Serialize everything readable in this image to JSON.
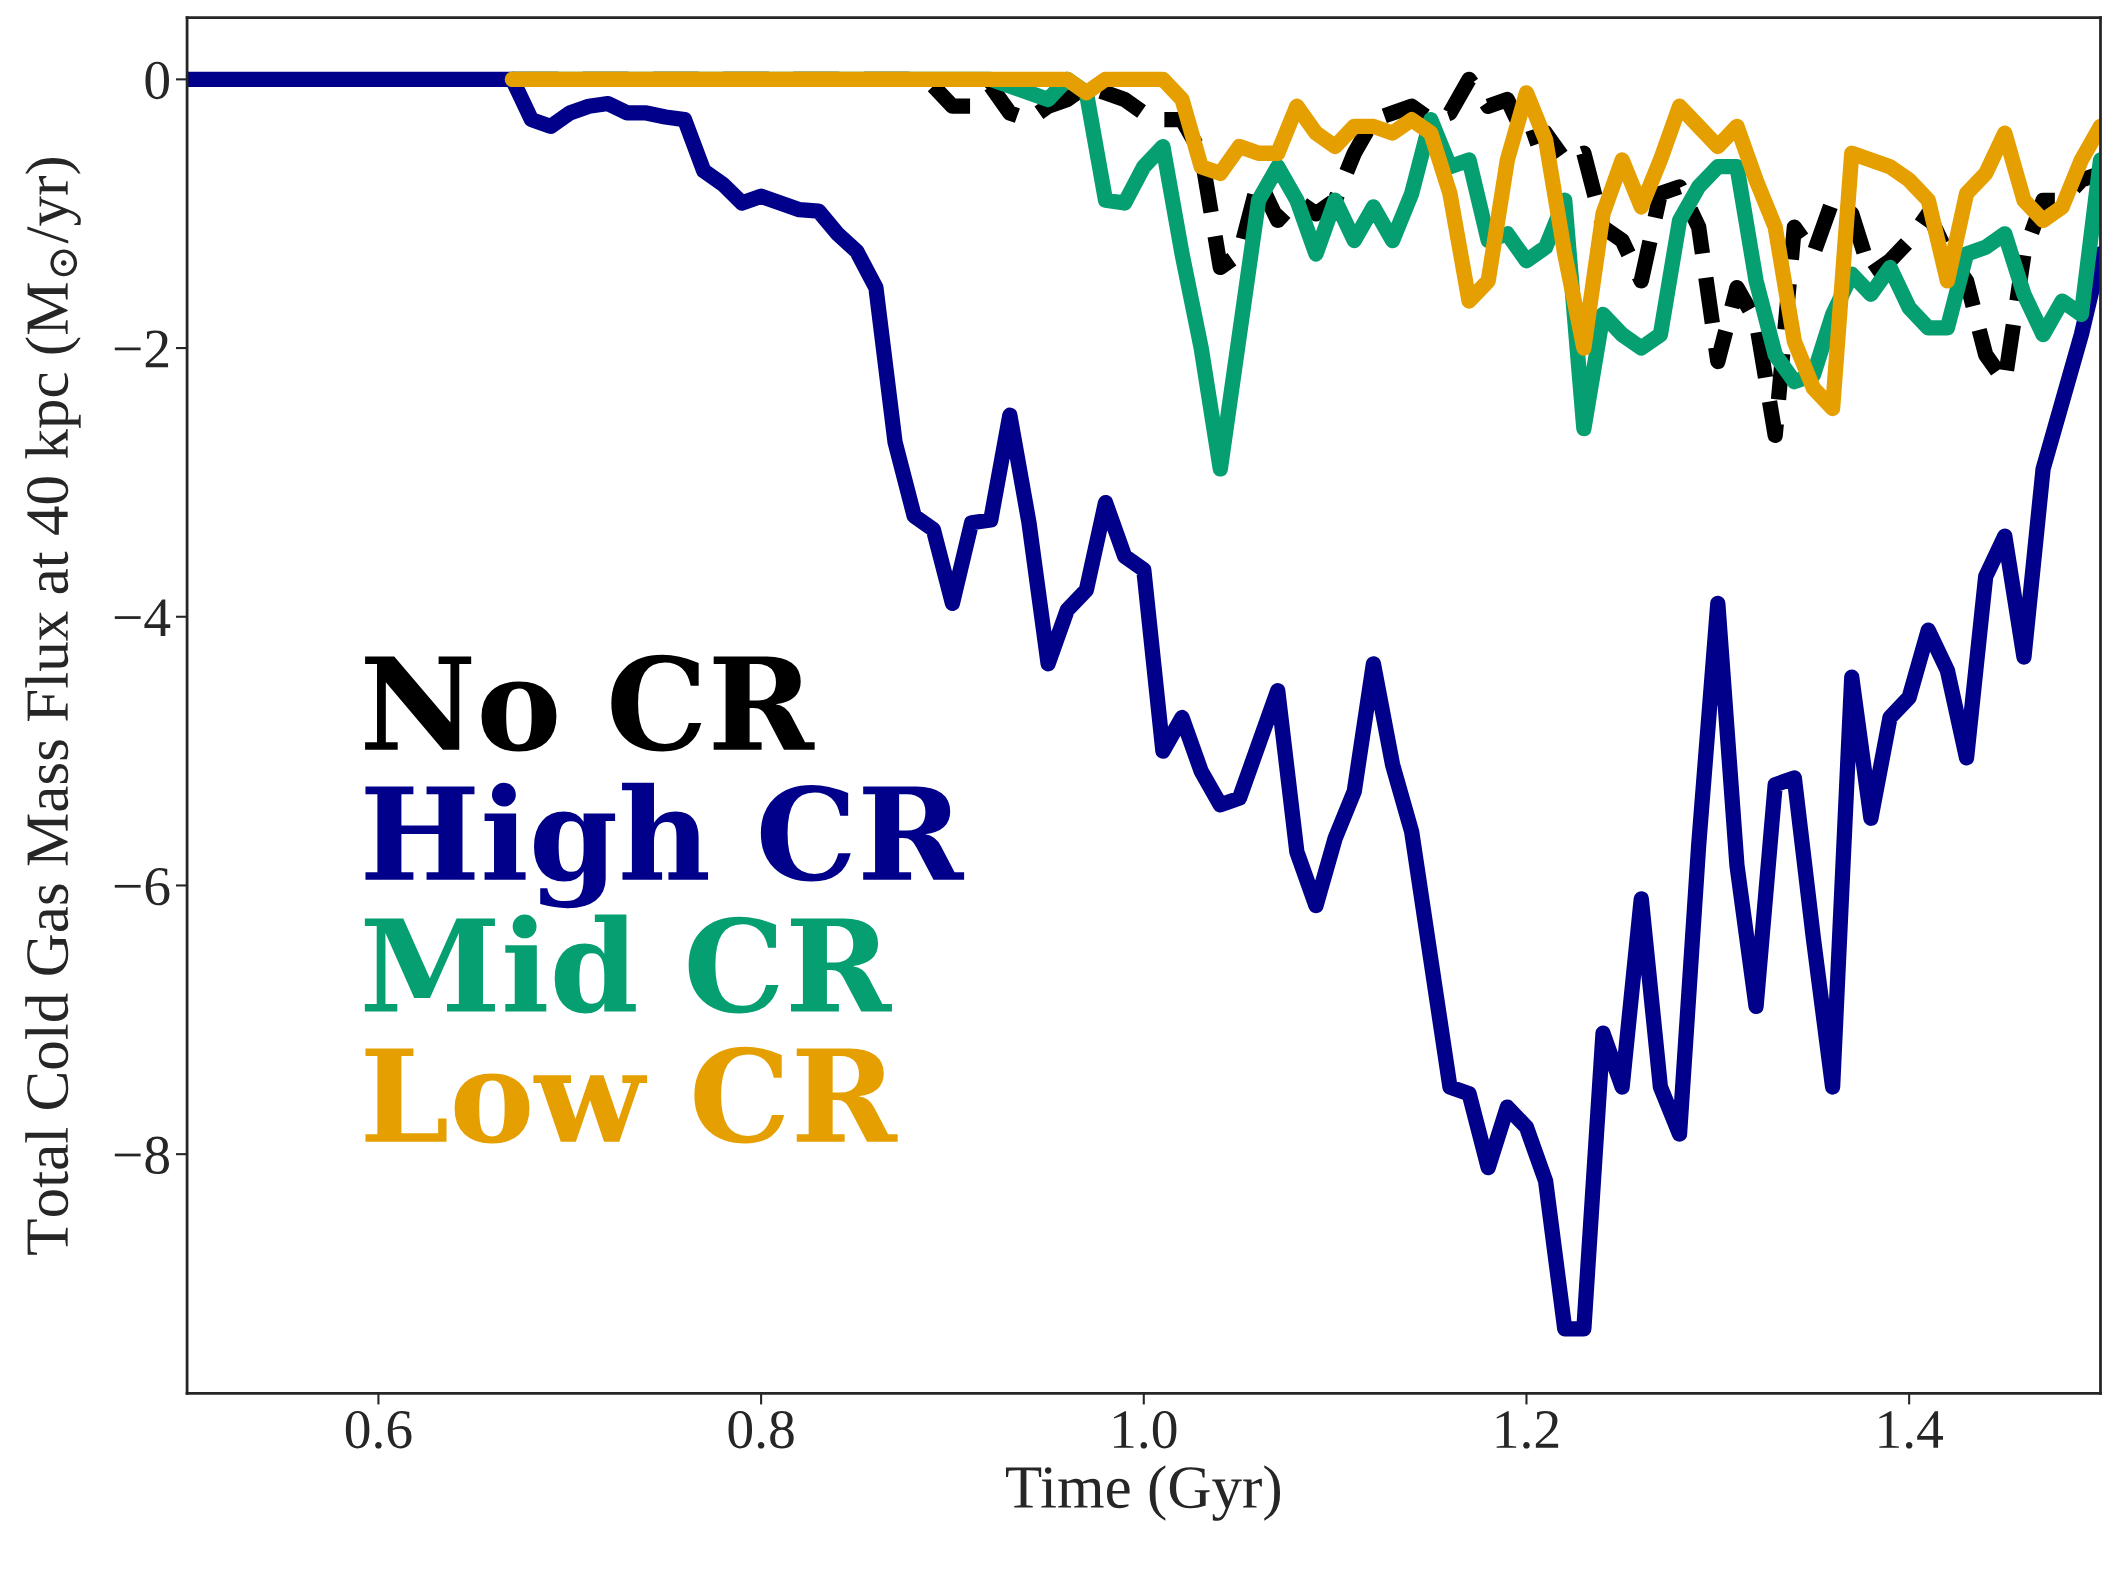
{
  "chart_data": {
    "type": "line",
    "xlabel": "Time (Gyr)",
    "ylabel": "Total Cold Gas Mass Flux at 40 kpc (M$_{⊙}$/yr)",
    "xlim": [
      0.5,
      1.5
    ],
    "ylim": [
      -9.78,
      0.46
    ],
    "xticks": [
      0.6,
      0.8,
      {
        "value": 1.0,
        "label": "1.0"
      },
      1.2,
      1.4
    ],
    "yticks": [
      0,
      {
        "value": -2,
        "label": "−2"
      },
      {
        "value": -4,
        "label": "−4"
      },
      {
        "value": -6,
        "label": "−6"
      },
      {
        "value": -8,
        "label": "−8"
      }
    ],
    "grid": false,
    "legend": "bottom left",
    "marker": "none",
    "series": [
      {
        "name": "No CR",
        "color": "#000000",
        "line_style": "dashed",
        "x": [
          0.67,
          0.88,
          0.89,
          0.9,
          0.91,
          0.92,
          0.93,
          0.94,
          0.95,
          0.96,
          0.97,
          0.98,
          0.99,
          1.0,
          1.01,
          1.02,
          1.03,
          1.04,
          1.05,
          1.06,
          1.07,
          1.08,
          1.09,
          1.1,
          1.11,
          1.12,
          1.13,
          1.14,
          1.15,
          1.16,
          1.17,
          1.18,
          1.19,
          1.2,
          1.21,
          1.22,
          1.23,
          1.24,
          1.25,
          1.26,
          1.27,
          1.28,
          1.29,
          1.3,
          1.31,
          1.32,
          1.33,
          1.34,
          1.35,
          1.36,
          1.37,
          1.38,
          1.39,
          1.4,
          1.41,
          1.42,
          1.43,
          1.44,
          1.45,
          1.46,
          1.47,
          1.48,
          1.49,
          1.5
        ],
        "values": [
          0,
          0,
          -0.05,
          -0.2,
          -0.2,
          -0.05,
          -0.25,
          -0.3,
          -0.2,
          -0.15,
          -0.05,
          -0.1,
          -0.15,
          -0.25,
          -0.3,
          -0.3,
          -0.55,
          -1.4,
          -1.3,
          -0.75,
          -1.05,
          -0.9,
          -1.0,
          -0.9,
          -0.55,
          -0.3,
          -0.25,
          -0.2,
          -0.3,
          -0.25,
          0.0,
          -0.2,
          -0.15,
          -0.45,
          -0.4,
          -0.6,
          -0.55,
          -1.1,
          -1.2,
          -1.5,
          -0.85,
          -0.8,
          -1.1,
          -2.1,
          -1.55,
          -1.8,
          -2.65,
          -1.1,
          -1.3,
          -0.9,
          -1.0,
          -1.45,
          -1.35,
          -1.2,
          -1.0,
          -1.3,
          -1.5,
          -2.05,
          -2.25,
          -1.3,
          -0.9,
          -0.9,
          -0.75,
          -0.7
        ]
      },
      {
        "name": "High CR",
        "color": "#00008b",
        "x": [
          0.5,
          0.67,
          0.68,
          0.69,
          0.7,
          0.71,
          0.72,
          0.73,
          0.74,
          0.75,
          0.76,
          0.77,
          0.78,
          0.79,
          0.8,
          0.81,
          0.82,
          0.83,
          0.84,
          0.85,
          0.86,
          0.87,
          0.88,
          0.89,
          0.9,
          0.91,
          0.92,
          0.93,
          0.94,
          0.95,
          0.96,
          0.97,
          0.98,
          0.99,
          1.0,
          1.01,
          1.02,
          1.03,
          1.04,
          1.05,
          1.06,
          1.07,
          1.08,
          1.09,
          1.1,
          1.11,
          1.12,
          1.13,
          1.14,
          1.15,
          1.16,
          1.17,
          1.18,
          1.19,
          1.2,
          1.21,
          1.22,
          1.23,
          1.24,
          1.25,
          1.26,
          1.27,
          1.28,
          1.29,
          1.3,
          1.31,
          1.32,
          1.33,
          1.34,
          1.35,
          1.36,
          1.37,
          1.38,
          1.39,
          1.4,
          1.41,
          1.42,
          1.43,
          1.44,
          1.45,
          1.46,
          1.47,
          1.48,
          1.49,
          1.5
        ],
        "values": [
          0,
          0,
          -0.3,
          -0.35,
          -0.25,
          -0.2,
          -0.18,
          -0.25,
          -0.25,
          -0.28,
          -0.3,
          -0.68,
          -0.78,
          -0.92,
          -0.87,
          -0.92,
          -0.97,
          -0.98,
          -1.15,
          -1.28,
          -1.55,
          -2.7,
          -3.25,
          -3.35,
          -3.9,
          -3.3,
          -3.28,
          -2.5,
          -3.3,
          -4.35,
          -3.95,
          -3.8,
          -3.15,
          -3.55,
          -3.65,
          -5.0,
          -4.75,
          -5.15,
          -5.4,
          -5.35,
          -4.95,
          -4.55,
          -5.75,
          -6.15,
          -5.65,
          -5.3,
          -4.35,
          -5.1,
          -5.6,
          -6.55,
          -7.5,
          -7.55,
          -8.1,
          -7.65,
          -7.8,
          -8.2,
          -9.3,
          -9.3,
          -7.1,
          -7.5,
          -6.1,
          -7.5,
          -7.85,
          -5.7,
          -3.9,
          -5.85,
          -6.9,
          -5.25,
          -5.2,
          -6.4,
          -7.5,
          -4.45,
          -5.5,
          -4.75,
          -4.6,
          -4.1,
          -4.4,
          -5.05,
          -3.7,
          -3.4,
          -4.3,
          -2.9,
          -2.4,
          -1.9,
          -1.3
        ]
      },
      {
        "name": "Mid CR",
        "color": "#069f72",
        "x": [
          0.67,
          0.92,
          0.93,
          0.94,
          0.95,
          0.96,
          0.97,
          0.98,
          0.99,
          1.0,
          1.01,
          1.02,
          1.03,
          1.04,
          1.05,
          1.06,
          1.07,
          1.08,
          1.09,
          1.1,
          1.11,
          1.12,
          1.13,
          1.14,
          1.15,
          1.16,
          1.17,
          1.18,
          1.19,
          1.2,
          1.21,
          1.22,
          1.23,
          1.24,
          1.25,
          1.26,
          1.27,
          1.28,
          1.29,
          1.3,
          1.31,
          1.32,
          1.33,
          1.34,
          1.35,
          1.36,
          1.37,
          1.38,
          1.39,
          1.4,
          1.41,
          1.42,
          1.43,
          1.44,
          1.45,
          1.46,
          1.47,
          1.48,
          1.49,
          1.5
        ],
        "values": [
          0,
          0,
          -0.05,
          -0.1,
          -0.15,
          0.0,
          -0.1,
          -0.9,
          -0.92,
          -0.65,
          -0.5,
          -1.3,
          -2.0,
          -2.9,
          -1.9,
          -0.9,
          -0.65,
          -0.9,
          -1.3,
          -0.9,
          -1.2,
          -0.95,
          -1.2,
          -0.85,
          -0.3,
          -0.65,
          -0.6,
          -1.2,
          -1.15,
          -1.35,
          -1.25,
          -0.9,
          -2.6,
          -1.75,
          -1.9,
          -2.0,
          -1.9,
          -1.05,
          -0.8,
          -0.65,
          -0.65,
          -1.5,
          -2.05,
          -2.25,
          -2.2,
          -1.75,
          -1.45,
          -1.6,
          -1.4,
          -1.7,
          -1.85,
          -1.85,
          -1.3,
          -1.25,
          -1.15,
          -1.6,
          -1.9,
          -1.65,
          -1.75,
          -0.6
        ]
      },
      {
        "name": "Low CR",
        "color": "#e69f00",
        "x": [
          0.67,
          0.96,
          0.97,
          0.98,
          0.99,
          1.0,
          1.01,
          1.02,
          1.03,
          1.04,
          1.05,
          1.06,
          1.07,
          1.08,
          1.09,
          1.1,
          1.11,
          1.12,
          1.13,
          1.14,
          1.15,
          1.16,
          1.17,
          1.18,
          1.19,
          1.2,
          1.21,
          1.22,
          1.23,
          1.24,
          1.25,
          1.26,
          1.27,
          1.28,
          1.29,
          1.3,
          1.31,
          1.32,
          1.33,
          1.34,
          1.35,
          1.36,
          1.37,
          1.38,
          1.39,
          1.4,
          1.41,
          1.42,
          1.43,
          1.44,
          1.45,
          1.46,
          1.47,
          1.48,
          1.49,
          1.5
        ],
        "values": [
          0,
          0,
          -0.1,
          0,
          0,
          0,
          0,
          -0.15,
          -0.65,
          -0.7,
          -0.5,
          -0.55,
          -0.55,
          -0.2,
          -0.4,
          -0.5,
          -0.35,
          -0.35,
          -0.4,
          -0.3,
          -0.4,
          -0.85,
          -1.65,
          -1.5,
          -0.6,
          -0.1,
          -0.45,
          -1.3,
          -2.0,
          -1.0,
          -0.6,
          -0.95,
          -0.6,
          -0.2,
          -0.35,
          -0.5,
          -0.35,
          -0.75,
          -1.1,
          -1.95,
          -2.3,
          -2.45,
          -0.55,
          -0.6,
          -0.65,
          -0.75,
          -0.9,
          -1.5,
          -0.85,
          -0.7,
          -0.4,
          -0.9,
          -1.05,
          -0.95,
          -0.6,
          -0.35
        ]
      }
    ]
  }
}
